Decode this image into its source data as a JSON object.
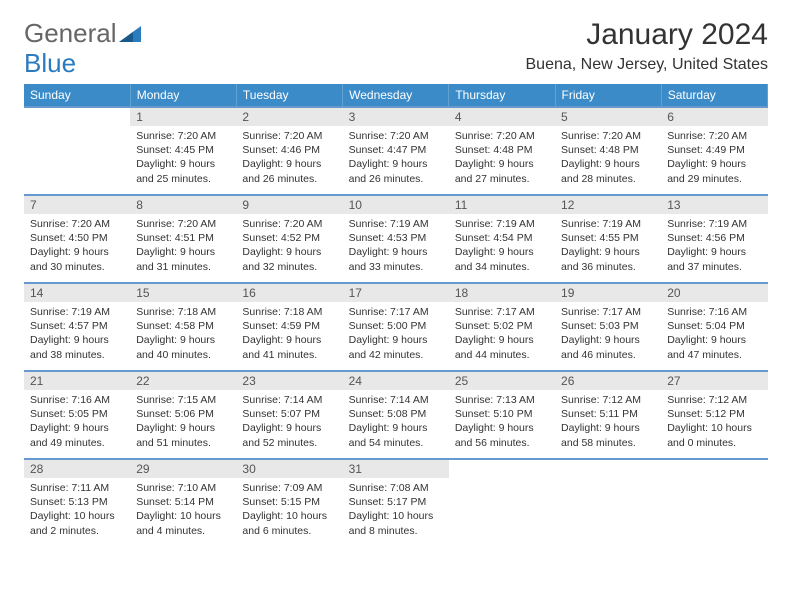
{
  "logo": {
    "general": "General",
    "blue": "Blue"
  },
  "title": "January 2024",
  "location": "Buena, New Jersey, United States",
  "weekday_headers": [
    "Sunday",
    "Monday",
    "Tuesday",
    "Wednesday",
    "Thursday",
    "Friday",
    "Saturday"
  ],
  "header_bg": "#3b8bc9",
  "row_border": "#6699cc",
  "daynum_bg": "#e8e8e8",
  "weeks": [
    [
      null,
      {
        "n": "1",
        "sunrise": "Sunrise: 7:20 AM",
        "sunset": "Sunset: 4:45 PM",
        "day": "Daylight: 9 hours and 25 minutes."
      },
      {
        "n": "2",
        "sunrise": "Sunrise: 7:20 AM",
        "sunset": "Sunset: 4:46 PM",
        "day": "Daylight: 9 hours and 26 minutes."
      },
      {
        "n": "3",
        "sunrise": "Sunrise: 7:20 AM",
        "sunset": "Sunset: 4:47 PM",
        "day": "Daylight: 9 hours and 26 minutes."
      },
      {
        "n": "4",
        "sunrise": "Sunrise: 7:20 AM",
        "sunset": "Sunset: 4:48 PM",
        "day": "Daylight: 9 hours and 27 minutes."
      },
      {
        "n": "5",
        "sunrise": "Sunrise: 7:20 AM",
        "sunset": "Sunset: 4:48 PM",
        "day": "Daylight: 9 hours and 28 minutes."
      },
      {
        "n": "6",
        "sunrise": "Sunrise: 7:20 AM",
        "sunset": "Sunset: 4:49 PM",
        "day": "Daylight: 9 hours and 29 minutes."
      }
    ],
    [
      {
        "n": "7",
        "sunrise": "Sunrise: 7:20 AM",
        "sunset": "Sunset: 4:50 PM",
        "day": "Daylight: 9 hours and 30 minutes."
      },
      {
        "n": "8",
        "sunrise": "Sunrise: 7:20 AM",
        "sunset": "Sunset: 4:51 PM",
        "day": "Daylight: 9 hours and 31 minutes."
      },
      {
        "n": "9",
        "sunrise": "Sunrise: 7:20 AM",
        "sunset": "Sunset: 4:52 PM",
        "day": "Daylight: 9 hours and 32 minutes."
      },
      {
        "n": "10",
        "sunrise": "Sunrise: 7:19 AM",
        "sunset": "Sunset: 4:53 PM",
        "day": "Daylight: 9 hours and 33 minutes."
      },
      {
        "n": "11",
        "sunrise": "Sunrise: 7:19 AM",
        "sunset": "Sunset: 4:54 PM",
        "day": "Daylight: 9 hours and 34 minutes."
      },
      {
        "n": "12",
        "sunrise": "Sunrise: 7:19 AM",
        "sunset": "Sunset: 4:55 PM",
        "day": "Daylight: 9 hours and 36 minutes."
      },
      {
        "n": "13",
        "sunrise": "Sunrise: 7:19 AM",
        "sunset": "Sunset: 4:56 PM",
        "day": "Daylight: 9 hours and 37 minutes."
      }
    ],
    [
      {
        "n": "14",
        "sunrise": "Sunrise: 7:19 AM",
        "sunset": "Sunset: 4:57 PM",
        "day": "Daylight: 9 hours and 38 minutes."
      },
      {
        "n": "15",
        "sunrise": "Sunrise: 7:18 AM",
        "sunset": "Sunset: 4:58 PM",
        "day": "Daylight: 9 hours and 40 minutes."
      },
      {
        "n": "16",
        "sunrise": "Sunrise: 7:18 AM",
        "sunset": "Sunset: 4:59 PM",
        "day": "Daylight: 9 hours and 41 minutes."
      },
      {
        "n": "17",
        "sunrise": "Sunrise: 7:17 AM",
        "sunset": "Sunset: 5:00 PM",
        "day": "Daylight: 9 hours and 42 minutes."
      },
      {
        "n": "18",
        "sunrise": "Sunrise: 7:17 AM",
        "sunset": "Sunset: 5:02 PM",
        "day": "Daylight: 9 hours and 44 minutes."
      },
      {
        "n": "19",
        "sunrise": "Sunrise: 7:17 AM",
        "sunset": "Sunset: 5:03 PM",
        "day": "Daylight: 9 hours and 46 minutes."
      },
      {
        "n": "20",
        "sunrise": "Sunrise: 7:16 AM",
        "sunset": "Sunset: 5:04 PM",
        "day": "Daylight: 9 hours and 47 minutes."
      }
    ],
    [
      {
        "n": "21",
        "sunrise": "Sunrise: 7:16 AM",
        "sunset": "Sunset: 5:05 PM",
        "day": "Daylight: 9 hours and 49 minutes."
      },
      {
        "n": "22",
        "sunrise": "Sunrise: 7:15 AM",
        "sunset": "Sunset: 5:06 PM",
        "day": "Daylight: 9 hours and 51 minutes."
      },
      {
        "n": "23",
        "sunrise": "Sunrise: 7:14 AM",
        "sunset": "Sunset: 5:07 PM",
        "day": "Daylight: 9 hours and 52 minutes."
      },
      {
        "n": "24",
        "sunrise": "Sunrise: 7:14 AM",
        "sunset": "Sunset: 5:08 PM",
        "day": "Daylight: 9 hours and 54 minutes."
      },
      {
        "n": "25",
        "sunrise": "Sunrise: 7:13 AM",
        "sunset": "Sunset: 5:10 PM",
        "day": "Daylight: 9 hours and 56 minutes."
      },
      {
        "n": "26",
        "sunrise": "Sunrise: 7:12 AM",
        "sunset": "Sunset: 5:11 PM",
        "day": "Daylight: 9 hours and 58 minutes."
      },
      {
        "n": "27",
        "sunrise": "Sunrise: 7:12 AM",
        "sunset": "Sunset: 5:12 PM",
        "day": "Daylight: 10 hours and 0 minutes."
      }
    ],
    [
      {
        "n": "28",
        "sunrise": "Sunrise: 7:11 AM",
        "sunset": "Sunset: 5:13 PM",
        "day": "Daylight: 10 hours and 2 minutes."
      },
      {
        "n": "29",
        "sunrise": "Sunrise: 7:10 AM",
        "sunset": "Sunset: 5:14 PM",
        "day": "Daylight: 10 hours and 4 minutes."
      },
      {
        "n": "30",
        "sunrise": "Sunrise: 7:09 AM",
        "sunset": "Sunset: 5:15 PM",
        "day": "Daylight: 10 hours and 6 minutes."
      },
      {
        "n": "31",
        "sunrise": "Sunrise: 7:08 AM",
        "sunset": "Sunset: 5:17 PM",
        "day": "Daylight: 10 hours and 8 minutes."
      },
      null,
      null,
      null
    ]
  ]
}
